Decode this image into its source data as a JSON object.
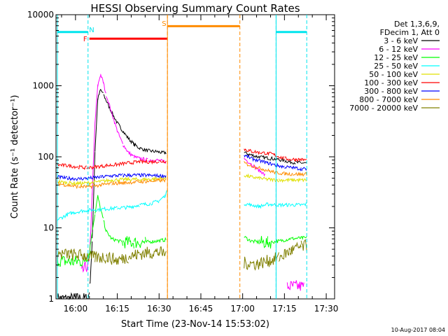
{
  "chart_data": {
    "type": "line",
    "title": "HESSI Observing Summary Count Rates",
    "xlabel": "Start Time (23-Nov-14 15:53:02)",
    "ylabel": "Count Rate (s⁻¹ detector⁻¹)",
    "y_scale": "log",
    "ylim": [
      1,
      10000
    ],
    "x_unit": "minutes after 15:53:02",
    "xlim": [
      0,
      100
    ],
    "x_ticks": [
      {
        "label": "16:00",
        "x": 7
      },
      {
        "label": "16:15",
        "x": 22
      },
      {
        "label": "16:30",
        "x": 37
      },
      {
        "label": "16:45",
        "x": 52
      },
      {
        "label": "17:00",
        "x": 67
      },
      {
        "label": "17:15",
        "x": 82
      },
      {
        "label": "17:30",
        "x": 97
      }
    ],
    "y_ticks": [
      {
        "label": "1",
        "v": 1
      },
      {
        "label": "10",
        "v": 10
      },
      {
        "label": "100",
        "v": 100
      },
      {
        "label": "1000",
        "v": 1000
      },
      {
        "label": "10000",
        "v": 10000
      }
    ],
    "legend_header": [
      "Det 1,3,6,9,",
      "FDecim 1, Att 0"
    ],
    "legend_placement": "right",
    "series": [
      {
        "name": "3 - 6 keV",
        "color": "#000000",
        "points": [
          [
            0.5,
            1
          ],
          [
            11.5,
            1
          ],
          [
            12,
            1.4
          ],
          [
            13,
            6
          ],
          [
            14,
            120
          ],
          [
            15,
            650
          ],
          [
            16,
            880
          ],
          [
            17,
            760
          ],
          [
            18,
            620
          ],
          [
            20,
            420
          ],
          [
            22,
            300
          ],
          [
            24,
            230
          ],
          [
            26,
            180
          ],
          [
            28,
            150
          ],
          [
            30,
            132
          ],
          [
            33,
            122
          ],
          [
            36,
            118
          ],
          [
            38,
            115
          ],
          [
            39.5,
            114
          ],
          [
            40,
            null
          ],
          [
            67,
            null
          ],
          [
            67.5,
            115
          ],
          [
            70,
            106
          ],
          [
            73,
            99
          ],
          [
            76,
            96
          ],
          [
            79,
            93
          ],
          [
            82,
            88
          ],
          [
            84,
            85
          ],
          [
            86,
            83
          ],
          [
            88,
            82
          ],
          [
            90,
            81
          ]
        ]
      },
      {
        "name": "6 - 12 keV",
        "color": "#ff00ff",
        "points": [
          [
            6,
            null
          ],
          [
            9,
            2.3
          ],
          [
            12,
            3.2
          ],
          [
            13,
            30
          ],
          [
            14,
            300
          ],
          [
            15,
            1000
          ],
          [
            16,
            1450
          ],
          [
            17,
            1100
          ],
          [
            18,
            750
          ],
          [
            20,
            420
          ],
          [
            22,
            230
          ],
          [
            24,
            150
          ],
          [
            26,
            115
          ],
          [
            28,
            100
          ],
          [
            30,
            95
          ],
          [
            33,
            90
          ],
          [
            36,
            90
          ],
          [
            38,
            87
          ],
          [
            39.5,
            85
          ],
          [
            40,
            null
          ],
          [
            67,
            null
          ],
          [
            67.5,
            95
          ],
          [
            70,
            80
          ],
          [
            72,
            68
          ],
          [
            74,
            60
          ],
          [
            75,
            55
          ],
          [
            76,
            null
          ],
          [
            82.5,
            null
          ],
          [
            83,
            1.5
          ],
          [
            89,
            1.5
          ]
        ]
      },
      {
        "name": "12 - 25 keV",
        "color": "#00ff00",
        "points": [
          [
            0.5,
            3.5
          ],
          [
            5,
            3.3
          ],
          [
            10,
            3.4
          ],
          [
            12,
            4.5
          ],
          [
            13,
            9
          ],
          [
            14,
            16
          ],
          [
            15,
            28
          ],
          [
            16,
            18
          ],
          [
            17,
            13
          ],
          [
            18,
            9
          ],
          [
            20,
            7
          ],
          [
            24,
            6.3
          ],
          [
            28,
            6.2
          ],
          [
            32,
            6.3
          ],
          [
            36,
            6.5
          ],
          [
            39.5,
            6.8
          ],
          [
            40,
            null
          ],
          [
            67,
            null
          ],
          [
            67.5,
            7.5
          ],
          [
            70,
            6.5
          ],
          [
            73,
            6.3
          ],
          [
            76,
            6.2
          ],
          [
            80,
            6.5
          ],
          [
            84,
            7
          ],
          [
            88,
            7.2
          ],
          [
            90,
            7.2
          ]
        ]
      },
      {
        "name": "25 - 50 keV",
        "color": "#00ffff",
        "points": [
          [
            0.5,
            13
          ],
          [
            5,
            16
          ],
          [
            10,
            17.5
          ],
          [
            14,
            18
          ],
          [
            18,
            18.5
          ],
          [
            22,
            19
          ],
          [
            26,
            19.5
          ],
          [
            30,
            21
          ],
          [
            34,
            22
          ],
          [
            37,
            24
          ],
          [
            39,
            28
          ],
          [
            39.8,
            32
          ],
          [
            40,
            null
          ],
          [
            67,
            null
          ],
          [
            67.5,
            22
          ],
          [
            70,
            21
          ],
          [
            73,
            20
          ],
          [
            76,
            21.5
          ],
          [
            80,
            21
          ],
          [
            84,
            21
          ],
          [
            88,
            21
          ],
          [
            90,
            21.5
          ]
        ]
      },
      {
        "name": "50 - 100 keV",
        "color": "#e0e000",
        "points": [
          [
            0.5,
            45
          ],
          [
            4,
            43
          ],
          [
            8,
            42
          ],
          [
            12,
            43
          ],
          [
            16,
            45
          ],
          [
            20,
            47
          ],
          [
            24,
            48
          ],
          [
            28,
            48
          ],
          [
            32,
            48
          ],
          [
            36,
            49
          ],
          [
            39.5,
            50
          ],
          [
            40,
            null
          ],
          [
            67,
            null
          ],
          [
            67.5,
            55
          ],
          [
            70,
            52
          ],
          [
            73,
            50
          ],
          [
            76,
            48
          ],
          [
            80,
            47
          ],
          [
            84,
            47
          ],
          [
            88,
            47
          ],
          [
            90,
            47
          ]
        ]
      },
      {
        "name": "100 - 300 keV",
        "color": "#ff0000",
        "points": [
          [
            0.5,
            77
          ],
          [
            4,
            75
          ],
          [
            8,
            72
          ],
          [
            11,
            70
          ],
          [
            14,
            72
          ],
          [
            18,
            75
          ],
          [
            22,
            78
          ],
          [
            26,
            82
          ],
          [
            30,
            85
          ],
          [
            34,
            85
          ],
          [
            37,
            86
          ],
          [
            39.5,
            87
          ],
          [
            40,
            null
          ],
          [
            67,
            null
          ],
          [
            67.5,
            128
          ],
          [
            70,
            120
          ],
          [
            73,
            115
          ],
          [
            76,
            112
          ],
          [
            78,
            108
          ],
          [
            80,
            100
          ],
          [
            82,
            95
          ],
          [
            84,
            92
          ],
          [
            86,
            92
          ],
          [
            88,
            91
          ],
          [
            90,
            90
          ]
        ]
      },
      {
        "name": "300 - 800 keV",
        "color": "#0000ff",
        "points": [
          [
            0.5,
            52
          ],
          [
            4,
            50
          ],
          [
            8,
            49
          ],
          [
            12,
            50
          ],
          [
            16,
            52
          ],
          [
            20,
            54
          ],
          [
            24,
            55
          ],
          [
            28,
            55
          ],
          [
            32,
            55
          ],
          [
            36,
            54
          ],
          [
            39.5,
            54
          ],
          [
            40,
            null
          ],
          [
            67,
            null
          ],
          [
            67.5,
            105
          ],
          [
            70,
            95
          ],
          [
            73,
            88
          ],
          [
            76,
            82
          ],
          [
            79,
            76
          ],
          [
            82,
            72
          ],
          [
            85,
            70
          ],
          [
            88,
            68
          ],
          [
            90,
            67
          ]
        ]
      },
      {
        "name": "800 - 7000 keV",
        "color": "#ff8c00",
        "points": [
          [
            0.5,
            42
          ],
          [
            4,
            40
          ],
          [
            8,
            38
          ],
          [
            12,
            38
          ],
          [
            16,
            40
          ],
          [
            20,
            42
          ],
          [
            24,
            43
          ],
          [
            28,
            44
          ],
          [
            32,
            45
          ],
          [
            36,
            46
          ],
          [
            39.5,
            47
          ],
          [
            40,
            null
          ],
          [
            67,
            null
          ],
          [
            67.5,
            82
          ],
          [
            70,
            75
          ],
          [
            73,
            70
          ],
          [
            76,
            64
          ],
          [
            79,
            60
          ],
          [
            82,
            58
          ],
          [
            85,
            57
          ],
          [
            88,
            57
          ],
          [
            90,
            57
          ]
        ]
      },
      {
        "name": "7000 - 20000 keV",
        "color": "#808000",
        "points": [
          [
            0.5,
            4.3
          ],
          [
            5,
            4.2
          ],
          [
            10,
            4.1
          ],
          [
            14,
            3.8
          ],
          [
            18,
            3.9
          ],
          [
            22,
            3.5
          ],
          [
            26,
            3.9
          ],
          [
            30,
            4.3
          ],
          [
            34,
            4.5
          ],
          [
            37,
            4.5
          ],
          [
            39.5,
            4.3
          ],
          [
            40,
            null
          ],
          [
            67,
            null
          ],
          [
            67.5,
            3.2
          ],
          [
            72,
            3.1
          ],
          [
            76,
            3.4
          ],
          [
            80,
            3.8
          ],
          [
            84,
            4.7
          ],
          [
            88,
            5.4
          ],
          [
            90,
            5.6
          ]
        ]
      }
    ],
    "annotations": [
      {
        "label": "N",
        "color": "#00e5ee",
        "segments": [
          [
            0.5,
            11.5
          ],
          [
            79,
            90
          ]
        ],
        "level": 5700,
        "boundaries": [
          11.5,
          79,
          90
        ],
        "label_x": 12.8,
        "label_level": 6200
      },
      {
        "label": "F",
        "color": "#ff0000",
        "segments": [
          [
            12,
            40
          ]
        ],
        "level": 4600,
        "label_x": 10.5,
        "label_level": 4600
      },
      {
        "label": "S",
        "color": "#ff8c00",
        "segments": [
          [
            40,
            66
          ]
        ],
        "level": 6900,
        "boundaries": [
          40,
          66
        ],
        "label_x": 38.8,
        "label_level": 7600
      }
    ],
    "grid": false,
    "edge_lines": [
      {
        "color": "#00e5ee",
        "x": 0.5
      },
      {
        "color": "#00e5ee",
        "x": 79
      },
      {
        "color": "#ff8c00",
        "x": 40
      }
    ]
  },
  "timestamp": "10-Aug-2017 08:04"
}
